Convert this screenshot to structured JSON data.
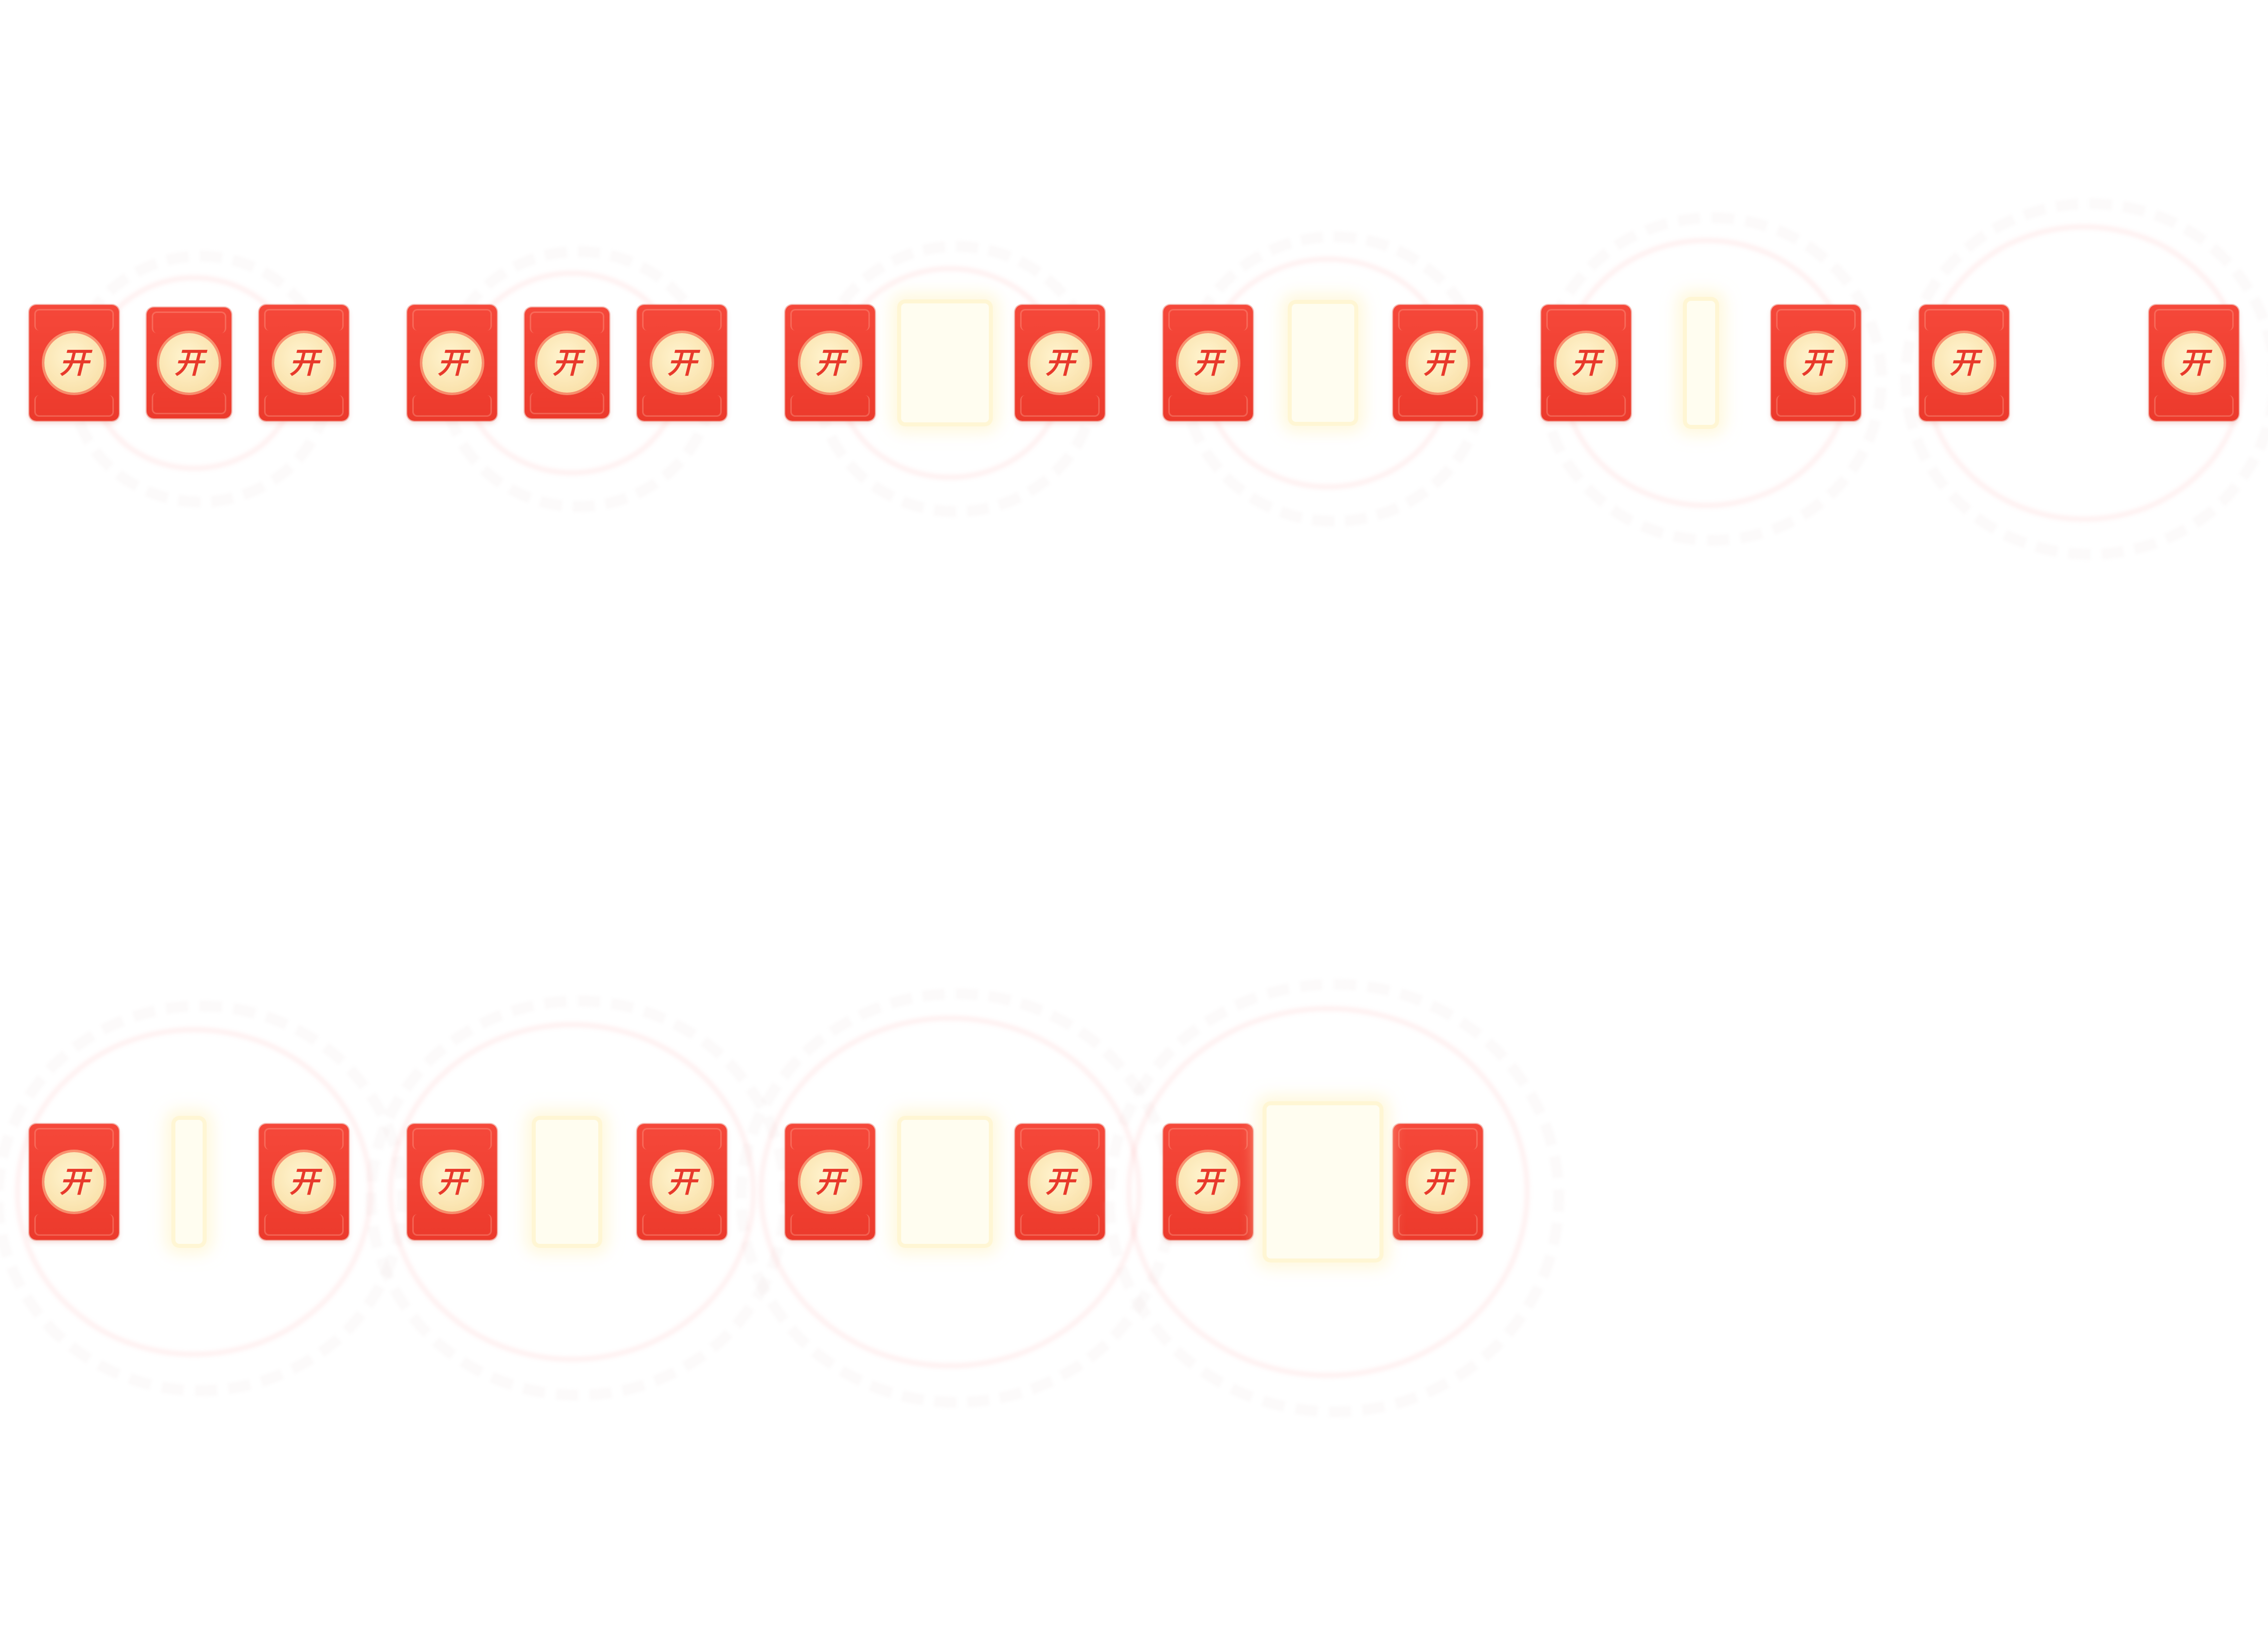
{
  "sprite_sheet": {
    "seal_text": "开",
    "colors": {
      "background": "#ffffff",
      "envelope_red": "#f5483a",
      "seal_gold": "#f9dfa6",
      "seal_text": "#e8392b",
      "sheen": "#fff8dd"
    },
    "frames": [
      {
        "frame": 1,
        "middle": "envelope",
        "glow_icon": "burst-ring-icon"
      },
      {
        "frame": 2,
        "middle": "envelope",
        "glow_icon": "burst-ring-icon"
      },
      {
        "frame": 3,
        "middle": "sheen",
        "glow_icon": "burst-ring-icon"
      },
      {
        "frame": 4,
        "middle": "sheen",
        "glow_icon": "burst-ring-icon"
      },
      {
        "frame": 5,
        "middle": "sheen",
        "glow_icon": "burst-ring-icon"
      },
      {
        "frame": 6,
        "middle": "none",
        "glow_icon": "burst-ring-icon"
      },
      {
        "frame": 7,
        "middle": "sheen",
        "glow_icon": "burst-ring-icon"
      },
      {
        "frame": 8,
        "middle": "sheen",
        "glow_icon": "burst-ring-icon"
      },
      {
        "frame": 9,
        "middle": "sheen",
        "glow_icon": "burst-ring-icon"
      },
      {
        "frame": 10,
        "middle": "sheen",
        "glow_icon": "burst-ring-icon"
      }
    ]
  }
}
